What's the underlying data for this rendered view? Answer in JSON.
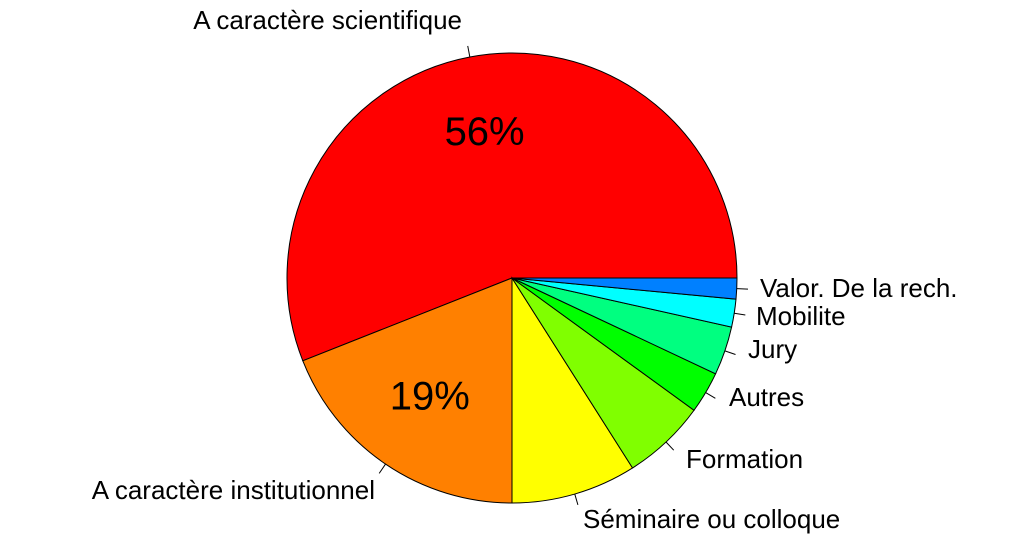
{
  "chart_data": {
    "type": "pie",
    "categories": [
      "A caractère scientifique",
      "A caractère institutionnel",
      "Séminaire ou colloque",
      "Formation",
      "Autres",
      "Jury",
      "Mobilite",
      "Valor. De la rech."
    ],
    "values": [
      56,
      19,
      9,
      6,
      3,
      3.5,
      2,
      1.5
    ],
    "value_labels": [
      "56%",
      "19%",
      null,
      null,
      null,
      null,
      null,
      null
    ],
    "colors": [
      "#FF0000",
      "#FF8000",
      "#FFFF00",
      "#80FF00",
      "#00FF00",
      "#00FF80",
      "#00FFFF",
      "#0080FF"
    ]
  }
}
